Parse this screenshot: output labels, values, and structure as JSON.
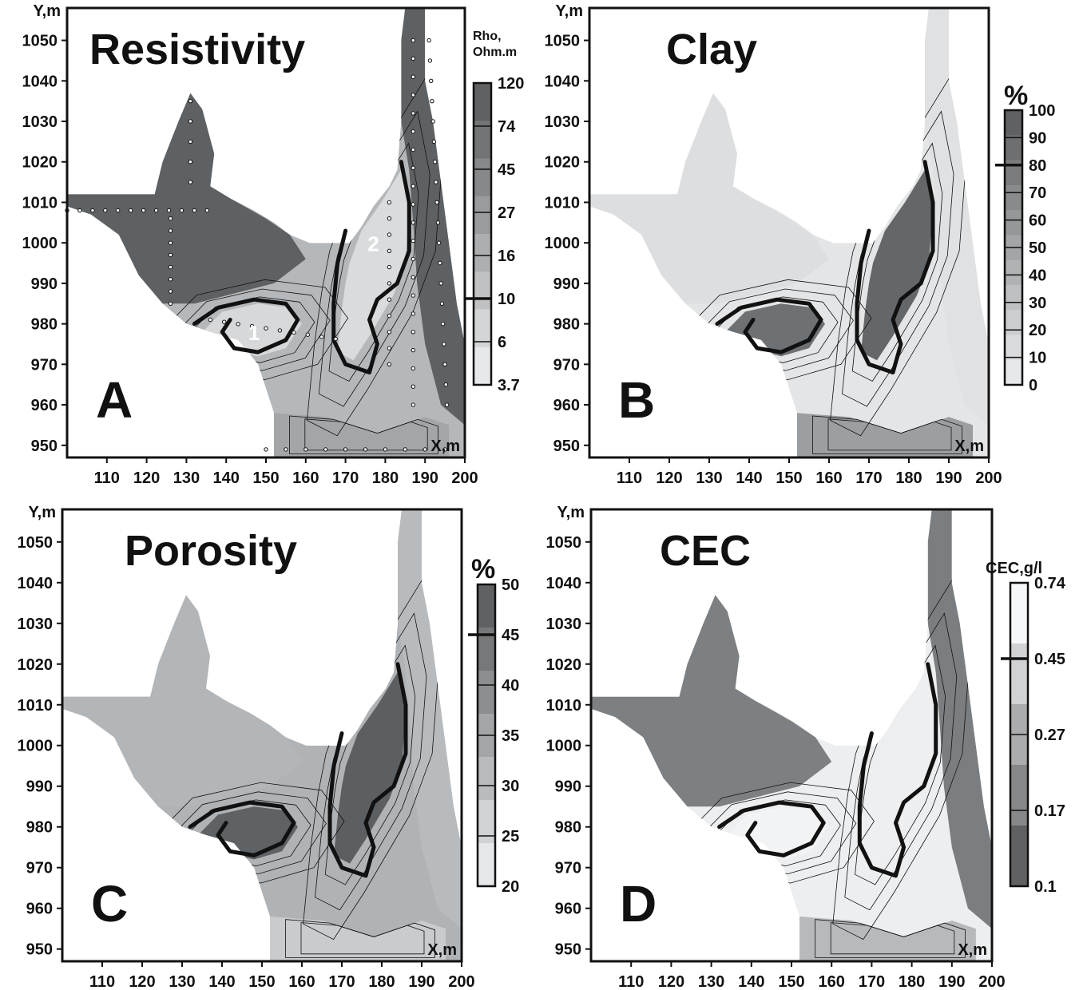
{
  "chart_data": [
    {
      "type": "heatmap",
      "title": "Resistivity",
      "panel_letter": "A",
      "xlabel": "X,m",
      "ylabel": "Y,m",
      "xlim": [
        100,
        200
      ],
      "ylim": [
        947,
        1058
      ],
      "xticks": [
        110,
        120,
        130,
        140,
        150,
        160,
        170,
        180,
        190,
        200
      ],
      "yticks": [
        950,
        960,
        970,
        980,
        990,
        1000,
        1010,
        1020,
        1030,
        1040,
        1050
      ],
      "colorbar": {
        "title_lines": [
          "Rho,",
          "Ohm.m"
        ],
        "levels": [
          "3.7",
          "6",
          "10",
          "16",
          "27",
          "45",
          "74",
          "120"
        ],
        "marker_level": "10",
        "dark_at_top": true,
        "scale": "log"
      },
      "zone_labels": [
        {
          "text": "1",
          "x": 147,
          "y": 976
        },
        {
          "text": "2",
          "x": 177,
          "y": 998
        }
      ],
      "has_sample_points": true,
      "contour_threshold": "10",
      "gridlines": false
    },
    {
      "type": "heatmap",
      "title": "Clay",
      "panel_letter": "B",
      "xlabel": "X,m",
      "ylabel": "Y,m",
      "xlim": [
        100,
        200
      ],
      "ylim": [
        947,
        1058
      ],
      "xticks": [
        110,
        120,
        130,
        140,
        150,
        160,
        170,
        180,
        190,
        200
      ],
      "yticks": [
        950,
        960,
        970,
        980,
        990,
        1000,
        1010,
        1020,
        1030,
        1040,
        1050
      ],
      "colorbar": {
        "title_lines": [
          "%"
        ],
        "levels": [
          "0",
          "10",
          "20",
          "30",
          "40",
          "50",
          "60",
          "70",
          "80",
          "90",
          "100"
        ],
        "marker_level": "80",
        "dark_at_top": true
      },
      "contour_threshold": "80",
      "gridlines": false
    },
    {
      "type": "heatmap",
      "title": "Porosity",
      "panel_letter": "C",
      "xlabel": "X,m",
      "ylabel": "Y,m",
      "xlim": [
        100,
        200
      ],
      "ylim": [
        947,
        1058
      ],
      "xticks": [
        110,
        120,
        130,
        140,
        150,
        160,
        170,
        180,
        190,
        200
      ],
      "yticks": [
        950,
        960,
        970,
        980,
        990,
        1000,
        1010,
        1020,
        1030,
        1040,
        1050
      ],
      "colorbar": {
        "title_lines": [
          "%"
        ],
        "levels": [
          "20",
          "25",
          "30",
          "35",
          "40",
          "45",
          "50"
        ],
        "marker_level": "45",
        "dark_at_top": true
      },
      "contour_threshold": "45",
      "gridlines": false
    },
    {
      "type": "heatmap",
      "title": "CEC",
      "panel_letter": "D",
      "xlabel": "X,m",
      "ylabel": "Y,m",
      "xlim": [
        100,
        200
      ],
      "ylim": [
        947,
        1058
      ],
      "xticks": [
        110,
        120,
        130,
        140,
        150,
        160,
        170,
        180,
        190,
        200
      ],
      "yticks": [
        950,
        960,
        970,
        980,
        990,
        1000,
        1010,
        1020,
        1030,
        1040,
        1050
      ],
      "colorbar": {
        "title_lines": [
          "CEC,g/l"
        ],
        "levels": [
          "0.1",
          "0.17",
          "0.27",
          "0.45",
          "0.74"
        ],
        "marker_level": "0.45",
        "dark_at_top": false,
        "scale": "log"
      },
      "contour_threshold": "0.45",
      "gridlines": false
    }
  ],
  "colors": {
    "dark": "#5f6264",
    "mid": "#a7aaad",
    "light": "#dcdee0",
    "contour": "#111111"
  }
}
